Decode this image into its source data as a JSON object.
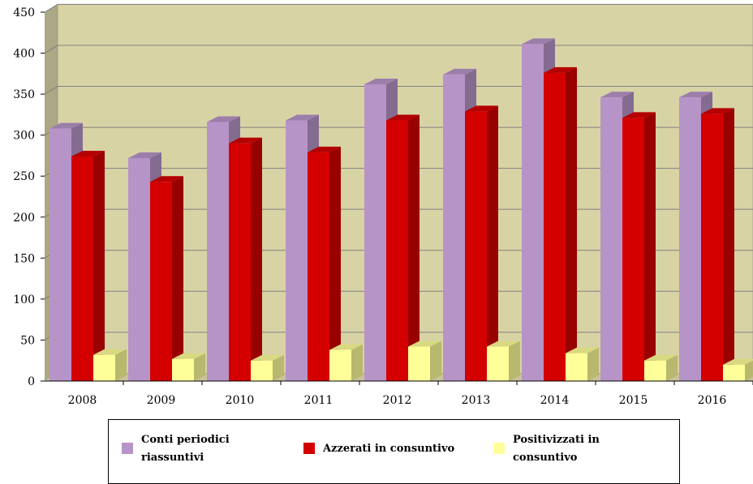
{
  "chart_data": {
    "type": "bar",
    "title": "",
    "xlabel": "",
    "ylabel": "",
    "categories": [
      "2008",
      "2009",
      "2010",
      "2011",
      "2012",
      "2013",
      "2014",
      "2015",
      "2016"
    ],
    "series": [
      {
        "name": "Conti periodici riassuntivi",
        "color": "#b794c8",
        "values": [
          308,
          272,
          316,
          318,
          362,
          374,
          411,
          346,
          346
        ]
      },
      {
        "name": "Azzerati in consuntivo",
        "color": "#d40000",
        "values": [
          274,
          243,
          290,
          279,
          318,
          329,
          376,
          321,
          326
        ]
      },
      {
        "name": "Positivizzati in consuntivo",
        "color": "#ffff99",
        "values": [
          32,
          27,
          25,
          38,
          42,
          42,
          34,
          25,
          20
        ]
      }
    ],
    "ylim": [
      0,
      450
    ],
    "yticks": [
      "0",
      "50",
      "100",
      "150",
      "200",
      "250",
      "300",
      "350",
      "400",
      "450"
    ],
    "grid": true,
    "legend_position": "bottom",
    "style": "3d-bar",
    "colors": {
      "plot_background": "#d8d3a5",
      "wall_side": "#aca785",
      "gridline": "#808080"
    }
  },
  "legend": {
    "items": [
      {
        "label_line1": "Conti periodici",
        "label_line2": "riassuntivi"
      },
      {
        "label_line1": "Azzerati in consuntivo",
        "label_line2": ""
      },
      {
        "label_line1": "Positivizzati in",
        "label_line2": "consuntivo"
      }
    ]
  }
}
